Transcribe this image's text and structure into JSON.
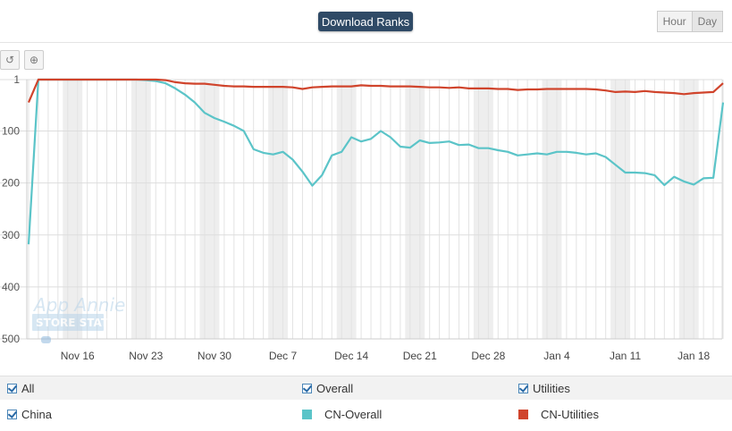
{
  "header": {
    "title": "Download Ranks",
    "toggles": [
      {
        "label": "Hour",
        "active": false
      },
      {
        "label": "Day",
        "active": true
      }
    ]
  },
  "toolbar": {
    "reset_icon": "undo-icon",
    "zoom_icon": "zoom-in-icon",
    "reset_glyph": "↺",
    "zoom_glyph": "⊕"
  },
  "watermark": {
    "line1": "App Annie",
    "line2": "STORE STATS"
  },
  "legend": {
    "row1": [
      {
        "label": "All",
        "checked": true
      },
      {
        "label": "Overall",
        "checked": true
      },
      {
        "label": "Utilities",
        "checked": true
      }
    ],
    "row2": {
      "country": {
        "label": "China",
        "checked": true
      },
      "series": [
        {
          "label": "CN-Overall",
          "color": "#5bc4c8"
        },
        {
          "label": "CN-Utilities",
          "color": "#d0442c"
        }
      ]
    }
  },
  "chart_data": {
    "type": "line",
    "title": "",
    "xlabel": "",
    "ylabel": "",
    "y_inverted": true,
    "ylim": [
      1,
      500
    ],
    "yticks": [
      1,
      100,
      200,
      300,
      400,
      500
    ],
    "grid": true,
    "start_date": "Nov 11",
    "x_ticks": [
      "Nov 16",
      "Nov 23",
      "Nov 30",
      "Dec 7",
      "Dec 14",
      "Dec 21",
      "Dec 28",
      "Jan 4",
      "Jan 11",
      "Jan 18"
    ],
    "weekend_bands": true,
    "series": [
      {
        "name": "CN-Overall",
        "color": "#5bc4c8",
        "values": [
          318,
          1,
          1,
          1,
          1,
          1,
          1,
          1,
          1,
          1,
          1,
          1,
          2,
          4,
          8,
          18,
          30,
          45,
          65,
          75,
          82,
          90,
          100,
          135,
          142,
          145,
          140,
          155,
          178,
          205,
          185,
          147,
          140,
          112,
          120,
          115,
          100,
          112,
          130,
          132,
          118,
          123,
          122,
          120,
          127,
          126,
          133,
          133,
          137,
          140,
          147,
          145,
          143,
          145,
          140,
          140,
          142,
          145,
          143,
          150,
          165,
          180,
          180,
          181,
          185,
          204,
          188,
          197,
          203,
          191,
          190,
          45
        ]
      },
      {
        "name": "CN-Utilities",
        "color": "#d0442c",
        "values": [
          45,
          1,
          1,
          1,
          1,
          1,
          1,
          1,
          1,
          1,
          1,
          1,
          1,
          1,
          2,
          6,
          8,
          9,
          9,
          11,
          13,
          14,
          14,
          15,
          15,
          15,
          15,
          16,
          19,
          16,
          15,
          14,
          14,
          14,
          12,
          13,
          13,
          14,
          14,
          14,
          15,
          16,
          16,
          17,
          16,
          18,
          18,
          18,
          19,
          19,
          21,
          20,
          20,
          19,
          19,
          19,
          19,
          19,
          20,
          22,
          25,
          24,
          25,
          23,
          25,
          26,
          27,
          29,
          27,
          26,
          25,
          8
        ]
      }
    ]
  }
}
